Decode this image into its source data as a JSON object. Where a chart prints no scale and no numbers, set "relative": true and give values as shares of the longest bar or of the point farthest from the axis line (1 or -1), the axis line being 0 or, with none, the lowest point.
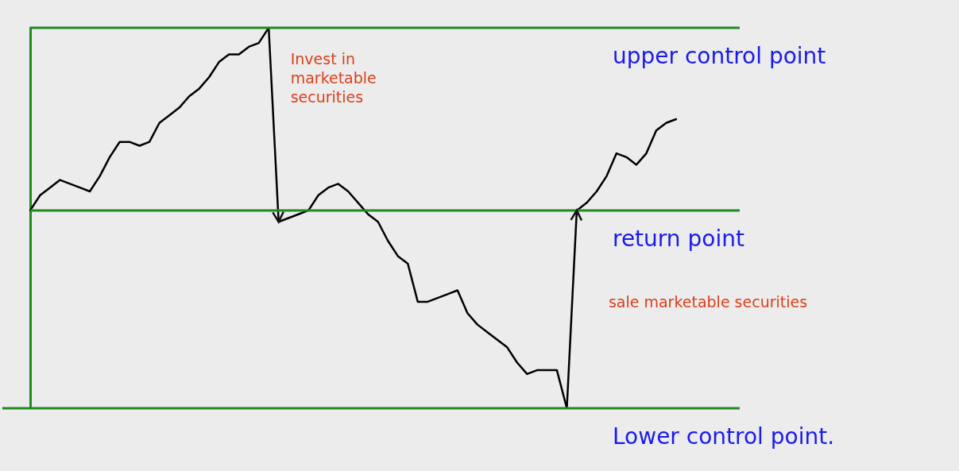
{
  "chart_data": {
    "type": "line",
    "relative": true,
    "grid": false,
    "legend": false,
    "marker": "none",
    "line_style": "solid",
    "categories": [
      null,
      null,
      null,
      null,
      null,
      null,
      null,
      null,
      null,
      null,
      null,
      null,
      null,
      null,
      null,
      null,
      null,
      null,
      null,
      null,
      null,
      null,
      null,
      null,
      null,
      null,
      null,
      null,
      null,
      null,
      null,
      null,
      null,
      null,
      null,
      null,
      null,
      null,
      null,
      null,
      null,
      null,
      null,
      null,
      null,
      null,
      null,
      null,
      null,
      null,
      null,
      null,
      null,
      null,
      null,
      null,
      null,
      null,
      null,
      null,
      null,
      null,
      null,
      null,
      null,
      null
    ],
    "series": [
      {
        "color": "#000000",
        "values": [
          0.52,
          0.56,
          0.58,
          0.6,
          0.59,
          0.58,
          0.57,
          0.61,
          0.66,
          0.7,
          0.7,
          0.69,
          0.7,
          0.75,
          0.77,
          0.79,
          0.82,
          0.84,
          0.87,
          0.91,
          0.93,
          0.93,
          0.95,
          0.96,
          1,
          0.49,
          0.5,
          0.51,
          0.52,
          0.56,
          0.58,
          0.59,
          0.57,
          0.54,
          0.51,
          0.49,
          0.44,
          0.4,
          0.38,
          0.28,
          0.28,
          0.29,
          0.3,
          0.31,
          0.25,
          0.22,
          0.2,
          0.18,
          0.16,
          0.12,
          0.09,
          0.1,
          0.1,
          0.1,
          0,
          0.52,
          0.54,
          0.57,
          0.61,
          0.67,
          0.66,
          0.64,
          0.67,
          0.73,
          0.75,
          0.76
        ]
      }
    ],
    "ref_lines": [
      {
        "axis": "y",
        "value": 1,
        "label": "upper control point",
        "color": "#1e8c1e"
      },
      {
        "axis": "y",
        "value": 0.52,
        "label": "return point",
        "color": "#1e8c1e"
      },
      {
        "axis": "y",
        "value": 0,
        "label": "Lower control point.",
        "color": "#1e8c1e"
      }
    ],
    "annotations": [
      "Invest in marketable securities",
      "sale marketable securities"
    ]
  }
}
